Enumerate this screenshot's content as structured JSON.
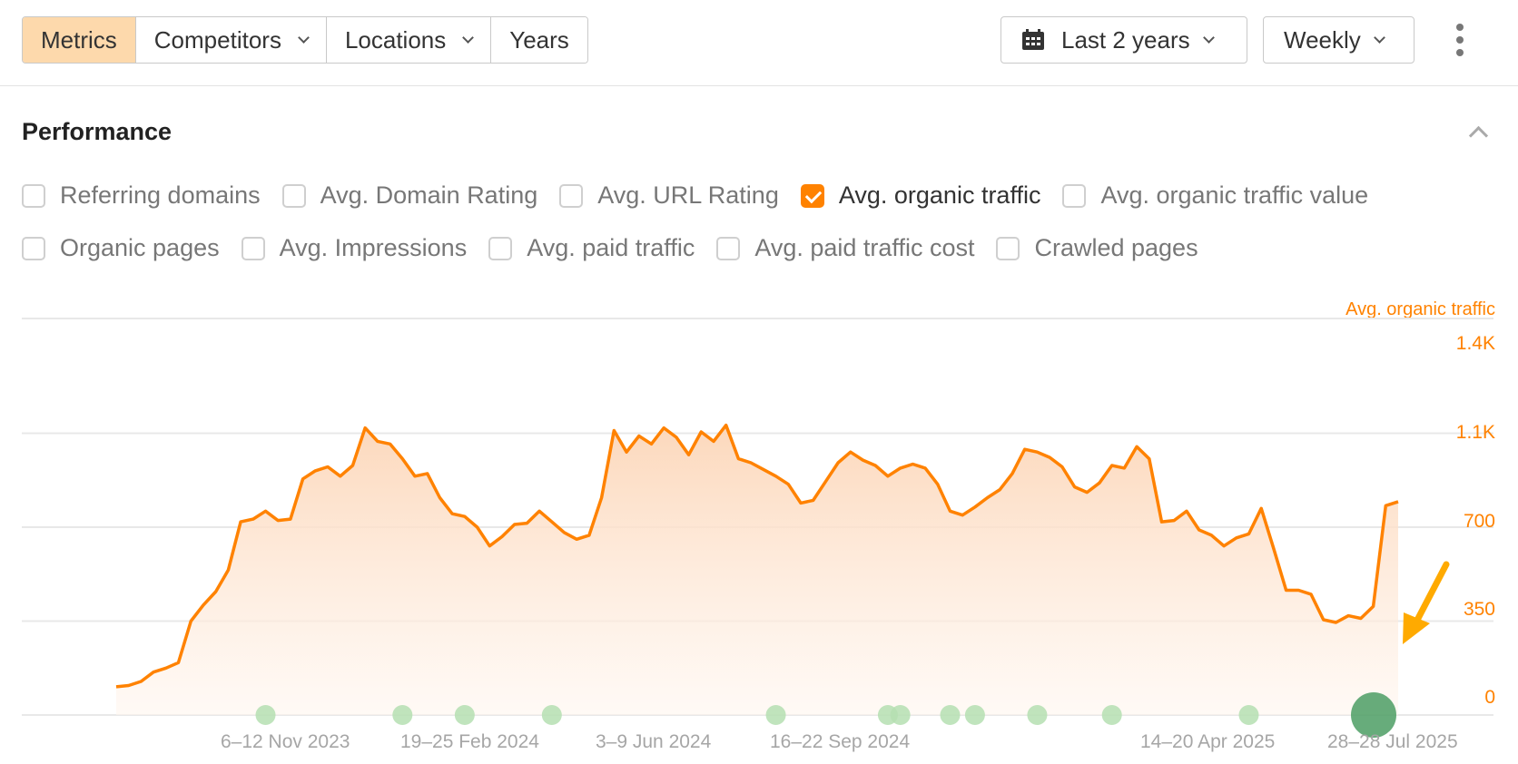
{
  "toolbar": {
    "segments": [
      {
        "label": "Metrics",
        "active": true,
        "dropdown": false
      },
      {
        "label": "Competitors",
        "active": false,
        "dropdown": true
      },
      {
        "label": "Locations",
        "active": false,
        "dropdown": true
      },
      {
        "label": "Years",
        "active": false,
        "dropdown": false
      }
    ],
    "date_range": {
      "icon": "calendar-icon",
      "label": "Last 2 years"
    },
    "granularity": {
      "label": "Weekly"
    },
    "more_icon": "more-vertical-icon"
  },
  "section": {
    "title": "Performance",
    "collapse_icon": "chevron-up-icon"
  },
  "metrics": {
    "row1": [
      {
        "label": "Referring domains",
        "checked": false
      },
      {
        "label": "Avg. Domain Rating",
        "checked": false
      },
      {
        "label": "Avg. URL Rating",
        "checked": false
      },
      {
        "label": "Avg. organic traffic",
        "checked": true
      },
      {
        "label": "Avg. organic traffic value",
        "checked": false
      }
    ],
    "row2": [
      {
        "label": "Organic pages",
        "checked": false
      },
      {
        "label": "Avg. Impressions",
        "checked": false
      },
      {
        "label": "Avg. paid traffic",
        "checked": false
      },
      {
        "label": "Avg. paid traffic cost",
        "checked": false
      },
      {
        "label": "Crawled pages",
        "checked": false
      }
    ]
  },
  "colors": {
    "accent": "#ff8200",
    "active_segment": "#fdd9ac",
    "area_top": "#fcd9bd",
    "grid": "#e8e8e8",
    "annotation_dot": "#b5dfb2",
    "annotation_dot_highlight": "#4c9d64",
    "arrow": "#ffaa00",
    "xlabel": "#a6a6a6"
  },
  "chart_data": {
    "type": "area",
    "title": "",
    "ylabel": "Avg. organic traffic",
    "xlabel": "",
    "ylim": [
      0,
      1400
    ],
    "y_ticks": [
      "0",
      "350",
      "700",
      "1.1K",
      "1.4K"
    ],
    "x_tick_labels": [
      "6–12 Nov 2023",
      "19–25 Feb 2024",
      "3–9 Jun 2024",
      "16–22 Sep 2024",
      "14–20 Apr 2025",
      "28–28 Jul 2025"
    ],
    "grid": true,
    "legend_position": "none",
    "series": [
      {
        "name": "Avg. organic traffic",
        "color": "#ff8200",
        "values": [
          105,
          110,
          125,
          160,
          175,
          195,
          350,
          410,
          460,
          540,
          720,
          730,
          760,
          725,
          730,
          880,
          910,
          925,
          890,
          930,
          1070,
          1020,
          1010,
          955,
          890,
          900,
          810,
          750,
          740,
          700,
          630,
          665,
          710,
          715,
          760,
          720,
          680,
          655,
          670,
          810,
          1060,
          980,
          1040,
          1010,
          1070,
          1035,
          970,
          1055,
          1020,
          1080,
          955,
          940,
          915,
          890,
          860,
          790,
          800,
          870,
          940,
          980,
          950,
          930,
          890,
          920,
          935,
          920,
          860,
          760,
          745,
          775,
          810,
          840,
          900,
          990,
          980,
          960,
          925,
          850,
          830,
          865,
          930,
          920,
          1000,
          955,
          720,
          725,
          760,
          690,
          670,
          630,
          660,
          675,
          770,
          620,
          465,
          465,
          450,
          355,
          345,
          370,
          360,
          405,
          780,
          795
        ]
      }
    ],
    "annotations": {
      "event_markers_x_index": [
        12,
        23,
        28,
        35,
        53,
        62,
        63,
        67,
        69,
        74,
        80,
        91,
        98
      ],
      "highlighted_marker_index": 98,
      "arrow": "pointing to highlighted marker at 28–28 Jul 2025"
    }
  }
}
